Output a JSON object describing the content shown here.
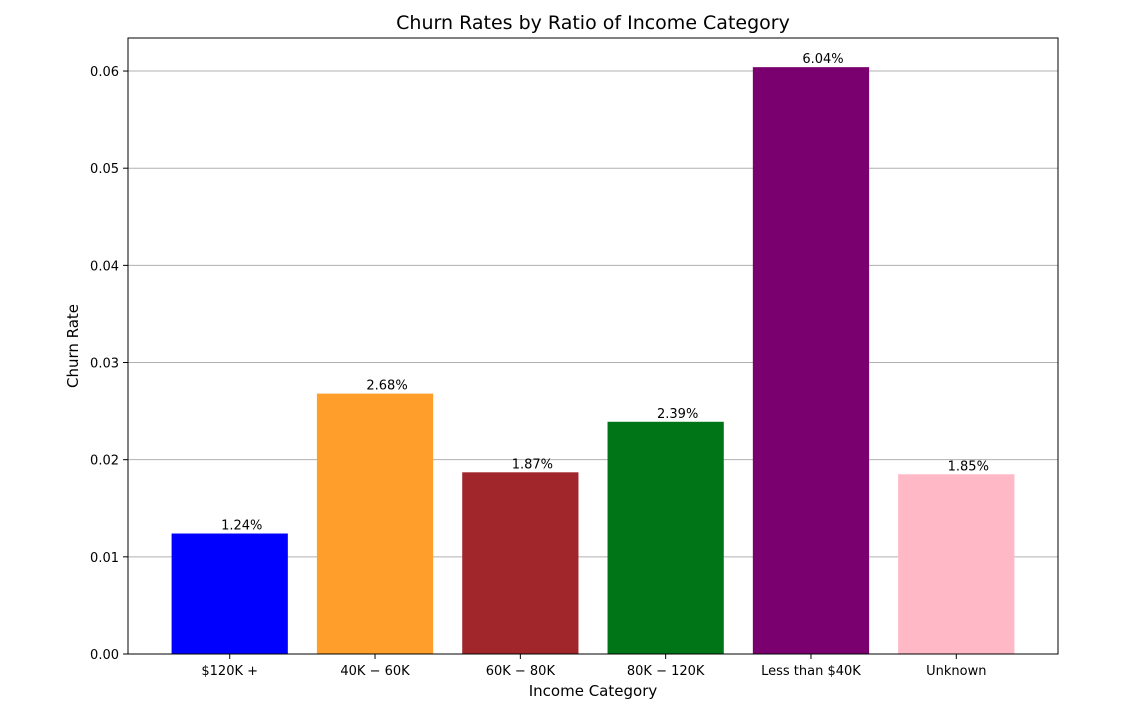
{
  "chart_data": {
    "type": "bar",
    "title": "Churn Rates by Ratio of Income Category",
    "xlabel": "Income Category",
    "ylabel": "Churn Rate",
    "categories": [
      "$120K +",
      "$40K - $60K",
      "$60K - $80K",
      "$80K - $120K",
      "Less than $40K",
      "Unknown"
    ],
    "category_display": [
      "$120K +",
      "40K − 60K",
      "60K − 80K",
      "80K − 120K",
      "Less than $40K",
      "Unknown"
    ],
    "values": [
      0.0124,
      0.0268,
      0.0187,
      0.0239,
      0.0604,
      0.0185
    ],
    "value_labels": [
      "1.24%",
      "2.68%",
      "1.87%",
      "2.39%",
      "6.04%",
      "1.85%"
    ],
    "colors": [
      "#0000ff",
      "#ff9e2a",
      "#a0262b",
      "#007518",
      "#7a0070",
      "#ffb8c5"
    ],
    "ylim": [
      0,
      0.0634
    ],
    "yticks": [
      0.0,
      0.01,
      0.02,
      0.03,
      0.04,
      0.05,
      0.06
    ],
    "ytick_labels": [
      "0.00",
      "0.01",
      "0.02",
      "0.03",
      "0.04",
      "0.05",
      "0.06"
    ],
    "grid": "y",
    "legend": "none"
  }
}
